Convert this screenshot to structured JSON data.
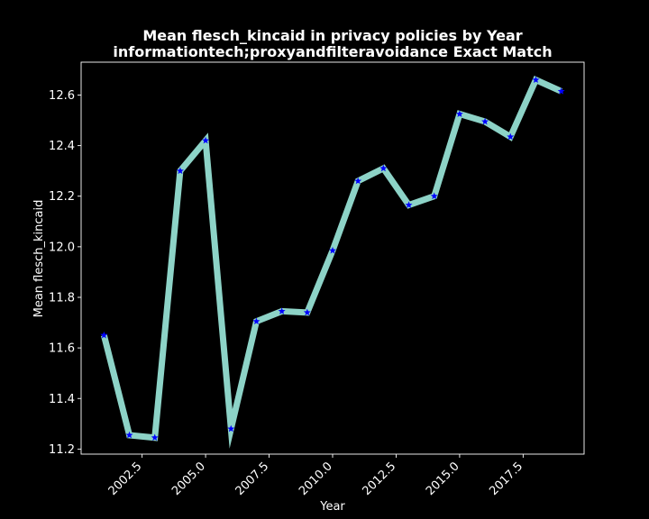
{
  "chart_data": {
    "type": "line",
    "title": "Mean flesch_kincaid in privacy policies by Year",
    "subtitle": "informationtech;proxyandfilteravoidance Exact Match",
    "xlabel": "Year",
    "ylabel": "Mean flesch_kincaid",
    "x": [
      2001,
      2002,
      2003,
      2004,
      2005,
      2006,
      2007,
      2008,
      2009,
      2010,
      2011,
      2012,
      2013,
      2014,
      2015,
      2016,
      2017,
      2018,
      2019
    ],
    "series": [
      {
        "values": [
          11.65,
          11.255,
          11.245,
          12.3,
          12.42,
          11.28,
          11.705,
          11.745,
          11.74,
          11.985,
          12.26,
          12.31,
          12.165,
          12.2,
          12.525,
          12.495,
          12.435,
          12.66,
          12.615
        ],
        "line_color": "#8dd3c7",
        "marker_color": "#0000ff",
        "marker": "star"
      }
    ],
    "xlim": [
      2000.1,
      2019.9
    ],
    "ylim": [
      11.18,
      12.73
    ],
    "x_ticks": [
      2002.5,
      2005.0,
      2007.5,
      2010.0,
      2012.5,
      2015.0,
      2017.5
    ],
    "x_tick_labels": [
      "2002.5",
      "2005.0",
      "2007.5",
      "2010.0",
      "2012.5",
      "2015.0",
      "2017.5"
    ],
    "y_ticks": [
      11.2,
      11.4,
      11.6,
      11.8,
      12.0,
      12.2,
      12.4,
      12.6
    ],
    "y_tick_labels": [
      "11.2",
      "11.4",
      "11.6",
      "11.8",
      "12.0",
      "12.2",
      "12.4",
      "12.6"
    ],
    "grid": false,
    "background": "#000000",
    "axis_color": "#ffffff"
  }
}
